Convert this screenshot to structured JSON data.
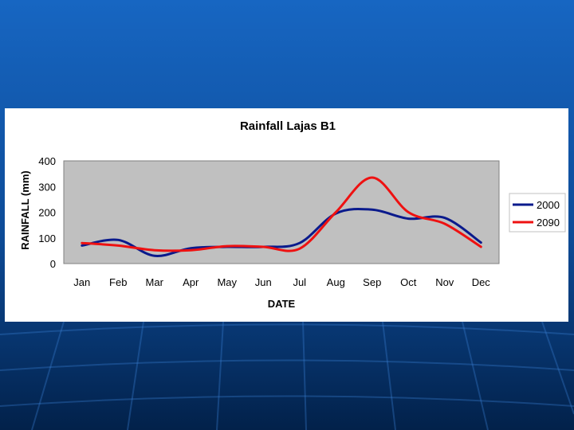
{
  "colors": {
    "slide_bg_top": "#1766c2",
    "slide_bg_bottom": "#02214a",
    "plot_bg": "#c0c0c0",
    "series_2000": "#0a1a8c",
    "series_2090": "#ee1111"
  },
  "chart_data": {
    "type": "line",
    "title": "Rainfall Lajas B1",
    "xlabel": "DATE",
    "ylabel": "RAINFALL (mm)",
    "categories": [
      "Jan",
      "Feb",
      "Mar",
      "Apr",
      "May",
      "Jun",
      "Jul",
      "Aug",
      "Sep",
      "Oct",
      "Nov",
      "Dec"
    ],
    "y_ticks": [
      "0",
      "100",
      "200",
      "300",
      "400"
    ],
    "ylim": [
      0,
      400
    ],
    "grid": false,
    "smooth": true,
    "legend_position": "right",
    "series": [
      {
        "name": "2000",
        "color": "#0a1a8c",
        "values": [
          70,
          92,
          30,
          60,
          65,
          65,
          80,
          195,
          210,
          175,
          178,
          82
        ]
      },
      {
        "name": "2090",
        "color": "#ee1111",
        "values": [
          80,
          70,
          52,
          52,
          68,
          65,
          58,
          200,
          335,
          200,
          155,
          65
        ]
      }
    ]
  }
}
